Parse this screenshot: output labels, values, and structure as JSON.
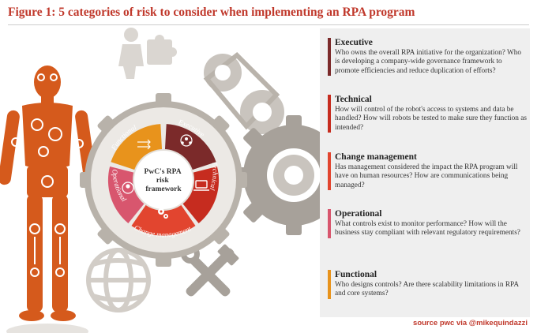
{
  "title": "Figure 1: 5 categories of risk to consider when implementing an RPA program",
  "colors": {
    "title": "#c0382b",
    "executive": "#7b2a2a",
    "technical": "#c62c1f",
    "change_management": "#e2452f",
    "operational": "#d8566e",
    "functional": "#e8931c",
    "robot": "#d55a1c",
    "gear_gray": "#a7a19a",
    "panel_bg": "#efefef"
  },
  "wheel": {
    "center_label": "PwC's RPA risk framework",
    "segments": [
      {
        "label": "Executive",
        "icon": "people-group-icon"
      },
      {
        "label": "Technical",
        "icon": "laptop-icon"
      },
      {
        "label": "Change management",
        "icon": "gears-icon"
      },
      {
        "label": "Operational",
        "icon": "person-cycle-icon"
      },
      {
        "label": "Functional",
        "icon": "process-arrows-icon"
      }
    ]
  },
  "decor_icons": [
    "robot-figure-icon",
    "puzzle-person-icon",
    "gear-belt-icon",
    "large-gear-icon",
    "globe-icon",
    "tools-icon"
  ],
  "categories": [
    {
      "title": "Executive",
      "text": "Who owns the overall RPA initiative for the organization? Who is developing a company-wide governance framework to promote efficiencies and reduce duplication of efforts?"
    },
    {
      "title": "Technical",
      "text": "How will control of the robot's access to systems and data be handled? How will robots be tested to make sure they function as intended?"
    },
    {
      "title": "Change management",
      "text": "Has management considered the impact the RPA program will have on human resources? How are communications being managed?"
    },
    {
      "title": "Operational",
      "text": "What controls exist to monitor performance? How will the business stay compliant with relevant regulatory requirements?"
    },
    {
      "title": "Functional",
      "text": "Who designs controls? Are there scalability limitations in RPA and core systems?"
    }
  ],
  "source": "source pwc via @mikequindazzi"
}
